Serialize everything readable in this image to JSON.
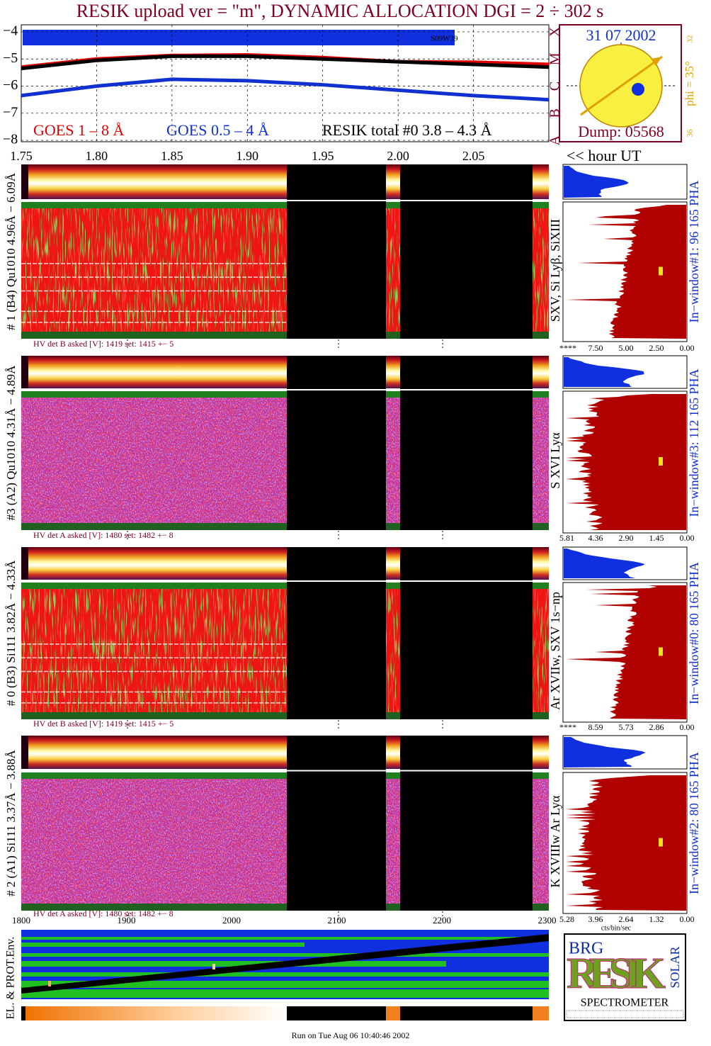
{
  "chart_data": {
    "type": "line",
    "title": "RESIK upload ver = \"m\", DYNAMIC ALLOCATION  DGI =   2 ÷ 302 s",
    "x": [
      1.75,
      1.8,
      1.85,
      1.9,
      1.95,
      2.0,
      2.05,
      2.1
    ],
    "series": [
      {
        "name": "GOES 1 – 8 Å",
        "color": "#e00000",
        "values": [
          -5.3,
          -5.0,
          -4.87,
          -4.85,
          -4.95,
          -5.1,
          -5.12,
          -5.2
        ]
      },
      {
        "name": "GOES 0.5 – 4 Å",
        "color": "#1030d0",
        "values": [
          -6.35,
          -6.0,
          -5.75,
          -5.8,
          -5.95,
          -6.15,
          -6.35,
          -6.5
        ]
      },
      {
        "name": "RESIK total #0  3.8 – 4.3 Å",
        "color": "#000000",
        "values": [
          -5.35,
          -5.05,
          -4.9,
          -4.9,
          -5.0,
          -5.1,
          -5.2,
          -5.3
        ]
      }
    ],
    "xlim": [
      1.75,
      2.1
    ],
    "xticks": [
      1.75,
      {
        "value": 1.8,
        "label": "1.80"
      },
      1.85,
      {
        "value": 1.9,
        "label": "1.90"
      },
      1.95,
      {
        "value": 2.0,
        "label": "2.00"
      },
      2.05
    ],
    "ylim": [
      -8.05,
      -3.74
    ],
    "yticks": [
      {
        "value": -4,
        "label": "−4"
      },
      {
        "value": -5,
        "label": "−5"
      },
      {
        "value": -6,
        "label": "−6"
      },
      {
        "value": -7,
        "label": "−7"
      },
      {
        "value": -8,
        "label": "−8"
      }
    ],
    "class_labels": [
      "X",
      "M",
      "C",
      "B",
      "A"
    ],
    "grid": true,
    "annotation": "S09W39"
  },
  "sun": {
    "date": "31 07 2002",
    "dump": "Dump: 05568",
    "phi": "phi = 35°",
    "lat_top": "32",
    "lat_bottom": "36"
  },
  "hour_label": "<< hour UT",
  "panels": [
    {
      "label": "# 1 (B4) Qu1010 4.96Å − 6.09Å",
      "lines": "SXV, Si Lyβ, SiXIII",
      "window": "In−window#1:   96 165  PHA",
      "hv": "HV det B asked [V]:  1419 set:  1415 +−    5",
      "axis": [
        "****",
        "7.50",
        "5.00",
        "2.50",
        "0.00"
      ]
    },
    {
      "label": "#3 (A2) Qu1010  4.31Å − 4.89Å",
      "lines": "S XVI Lyα",
      "window": "In−window#3:  112 165  PHA",
      "hv": "HV det A asked [V]:  1480 set:  1482 +−    8",
      "axis": [
        "5.81",
        "4.36",
        "2.90",
        "1.45",
        "0.00"
      ]
    },
    {
      "label": "# 0 (B3) Si111  3.82Å − 4.33Å",
      "lines": "Ar XVIIw,  SXV 1s−np",
      "window": "In−window#0:   80 165  PHA",
      "hv": "HV det B asked [V]:  1419 set:  1415 +−    5",
      "axis": [
        "****",
        "8.59",
        "5.73",
        "2.86",
        "0.00"
      ]
    },
    {
      "label": "# 2 (A1) Si111  3.37Å − 3.88Å",
      "lines": "K XVIIIw  Ar Lyα",
      "window": "In−window#2:   80 165  PHA",
      "hv": "HV det A asked [V]:  1480 set:  1482 +−    8",
      "axis": [
        "5.28",
        "3.96",
        "2.64",
        "1.32",
        "0.00"
      ]
    }
  ],
  "units": "cts/bin/sec",
  "time_axis": [
    "1800",
    "1900",
    "2000",
    "2100",
    "2200",
    "2300"
  ],
  "env_label": "EL. & PROT.Env.",
  "logo": {
    "top": "BRG",
    "big": "RESIK",
    "side": "SOLAR",
    "bottom": "SPECTROMETER"
  },
  "footer": "Run on Tue Aug 06 10:40:46 2002"
}
